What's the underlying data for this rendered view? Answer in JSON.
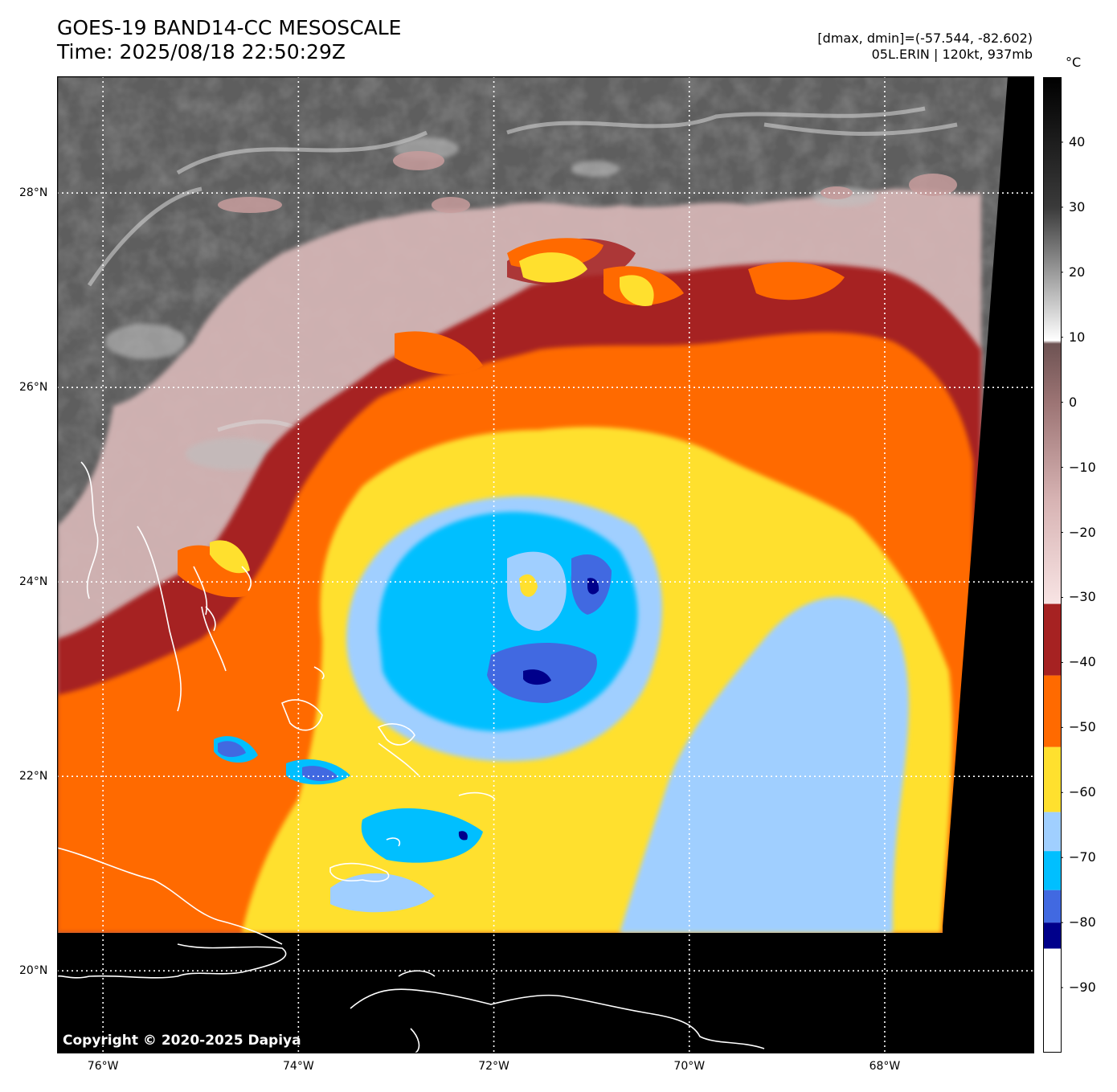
{
  "title": {
    "line1": "GOES-19 BAND14-CC MESOSCALE",
    "line2": "Time: 2025/08/18 22:50:29Z"
  },
  "info": {
    "line1": "[dmax, dmin]=(-57.544, -82.602)",
    "line2": "05L.ERIN | 120kt, 937mb"
  },
  "colorbar": {
    "unit": "°C",
    "ticks": [
      "40",
      "30",
      "20",
      "10",
      "0",
      "−10",
      "−20",
      "−30",
      "−40",
      "−50",
      "−60",
      "−70",
      "−80",
      "−90"
    ],
    "tick_values": [
      40,
      30,
      20,
      10,
      0,
      -10,
      -20,
      -30,
      -40,
      -50,
      -60,
      -70,
      -80,
      -90
    ],
    "range": [
      -100,
      50
    ],
    "segments": [
      {
        "from": -100,
        "to": -84,
        "color": "#ffffff"
      },
      {
        "from": -84,
        "to": -80,
        "color": "#00008b"
      },
      {
        "from": -80,
        "to": -75,
        "color": "#4169e1"
      },
      {
        "from": -75,
        "to": -69,
        "color": "#00bfff"
      },
      {
        "from": -69,
        "to": -63,
        "color": "#a0cfff"
      },
      {
        "from": -63,
        "to": -53,
        "color": "#ffe02e"
      },
      {
        "from": -53,
        "to": -42,
        "color": "#ff6a00"
      },
      {
        "from": -42,
        "to": -31,
        "color": "#a62222"
      }
    ],
    "gradient": [
      {
        "value": -31,
        "color": "#f8e4e4"
      },
      {
        "value": -15,
        "color": "#d7b3b3"
      },
      {
        "value": 0,
        "color": "#9c7474"
      },
      {
        "value": 9,
        "color": "#6e5353"
      },
      {
        "value": 9.5,
        "color": "#ffffff"
      },
      {
        "value": 20,
        "color": "#9a9a9a"
      },
      {
        "value": 30,
        "color": "#3a3a3a"
      },
      {
        "value": 50,
        "color": "#000000"
      }
    ]
  },
  "axes": {
    "latitude_labels": [
      {
        "text": "28°N",
        "value": 28
      },
      {
        "text": "26°N",
        "value": 26
      },
      {
        "text": "24°N",
        "value": 24
      },
      {
        "text": "22°N",
        "value": 22
      },
      {
        "text": "20°N",
        "value": 20
      }
    ],
    "longitude_labels": [
      {
        "text": "76°W",
        "value": -76
      },
      {
        "text": "74°W",
        "value": -74
      },
      {
        "text": "72°W",
        "value": -72
      },
      {
        "text": "70°W",
        "value": -70
      },
      {
        "text": "68°W",
        "value": -68
      }
    ],
    "lat_range": [
      19.15,
      29.2
    ],
    "lon_range": [
      -76.47,
      -66.47
    ]
  },
  "map_colors": {
    "ocean_clear": "#5a5a5a",
    "warm_cloud": "#d9b8b8",
    "no_data": "#000000",
    "coastline": "#ffffff",
    "grid": "#ffffff"
  },
  "copyright": "Copyright © 2020-2025 Dapiya"
}
